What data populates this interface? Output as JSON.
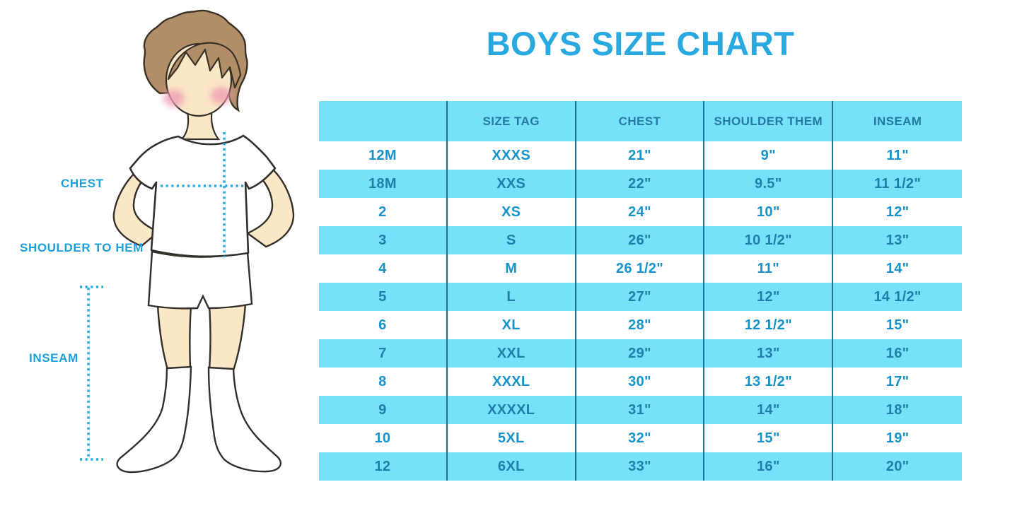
{
  "page_title": "BOYS SIZE CHART",
  "figure_labels": {
    "chest": "CHEST",
    "shoulder_to_hem": "SHOULDER TO HEM",
    "inseam": "INSEAM"
  },
  "chart_data": {
    "type": "table",
    "title": "BOYS SIZE CHART",
    "columns": [
      "",
      "SIZE TAG",
      "CHEST",
      "SHOULDER THEM",
      "INSEAM"
    ],
    "rows": [
      [
        "12M",
        "XXXS",
        "21\"",
        "9\"",
        "11\""
      ],
      [
        "18M",
        "XXS",
        "22\"",
        "9.5\"",
        "11 1/2\""
      ],
      [
        "2",
        "XS",
        "24\"",
        "10\"",
        "12\""
      ],
      [
        "3",
        "S",
        "26\"",
        "10 1/2\"",
        "13\""
      ],
      [
        "4",
        "M",
        "26 1/2\"",
        "11\"",
        "14\""
      ],
      [
        "5",
        "L",
        "27\"",
        "12\"",
        "14 1/2\""
      ],
      [
        "6",
        "XL",
        "28\"",
        "12 1/2\"",
        "15\""
      ],
      [
        "7",
        "XXL",
        "29\"",
        "13\"",
        "16\""
      ],
      [
        "8",
        "XXXL",
        "30\"",
        "13 1/2\"",
        "17\""
      ],
      [
        "9",
        "XXXXL",
        "31\"",
        "14\"",
        "18\""
      ],
      [
        "10",
        "5XL",
        "32\"",
        "15\"",
        "19\""
      ],
      [
        "12",
        "6XL",
        "33\"",
        "16\"",
        "20\""
      ]
    ],
    "row_stripe_pattern": "alternating white / cyan, starting white",
    "legend_position": "none",
    "grid": "vertical column dividers only"
  },
  "colors": {
    "title_blue": "#29A9E0",
    "label_blue": "#1E9FD9",
    "stripe_cyan": "#76E2F9",
    "divider_blue": "#1F7095",
    "cell_text_blue": "#1793CC",
    "alt_cell_text_blue": "#1F7FAB",
    "header_text_blue": "#2579A2",
    "dotted_line_cyan": "#2BAAE2",
    "skin": "#FAE7C6",
    "hair_brown": "#B28E68",
    "cheek_pink": "#F09EB4"
  }
}
